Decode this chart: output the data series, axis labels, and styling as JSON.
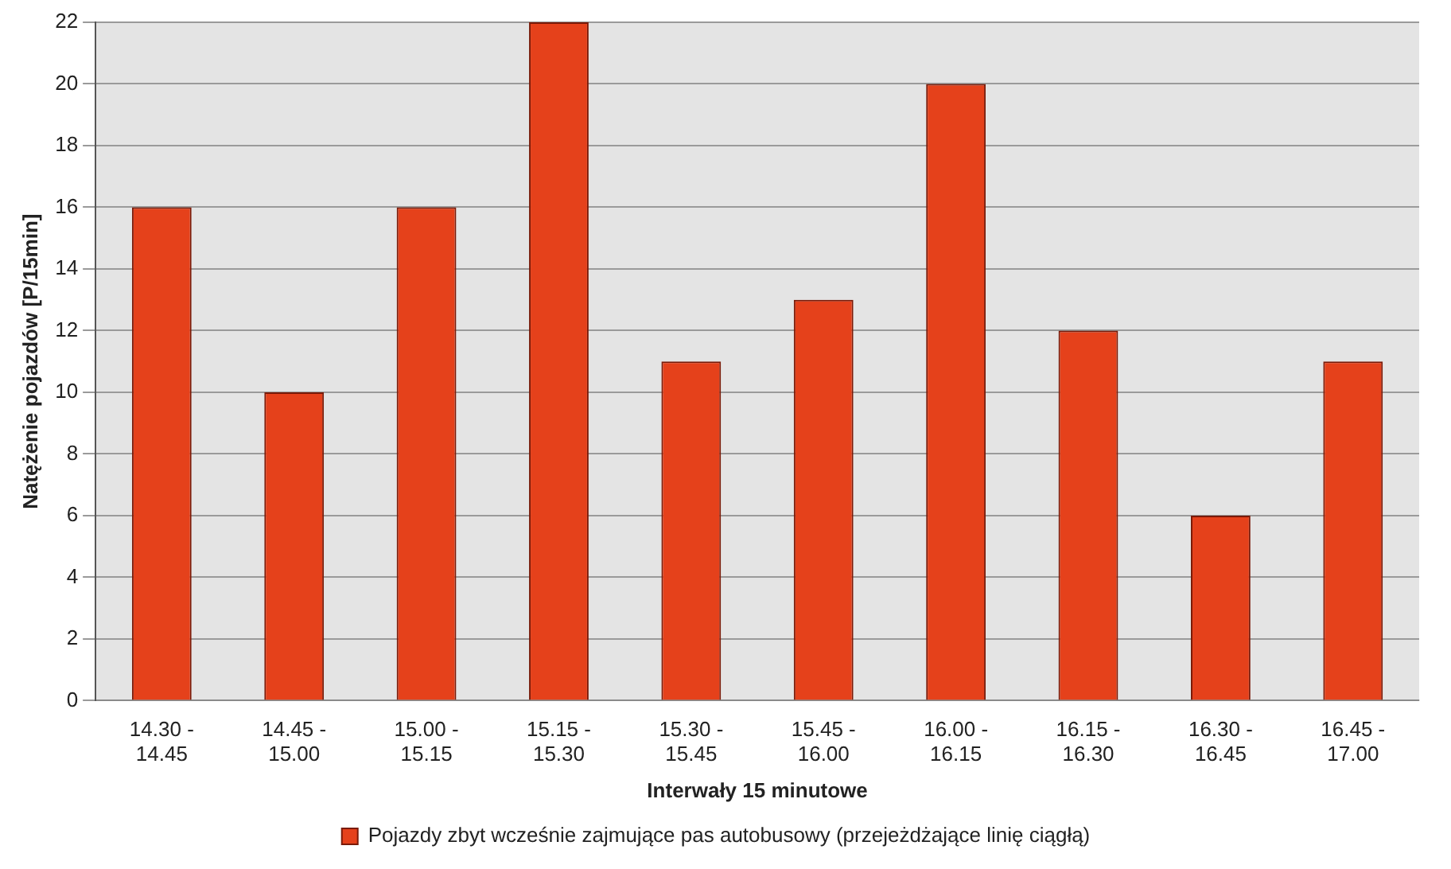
{
  "chart_data": {
    "type": "bar",
    "xlabel": "Interwały 15 minutowe",
    "ylabel": "Natężenie pojazdów [P/15min]",
    "categories": [
      "14.30 -\n14.45",
      "14.45 -\n15.00",
      "15.00 -\n15.15",
      "15.15 -\n15.30",
      "15.30 -\n15.45",
      "15.45 -\n16.00",
      "16.00 -\n16.15",
      "16.15 -\n16.30",
      "16.30 -\n16.45",
      "16.45 -\n17.00"
    ],
    "series": [
      {
        "name": "Pojazdy zbyt wcześnie zajmujące pas autobusowy (przejeżdżające linię ciągłą)",
        "color": "#e5411b",
        "values": [
          16,
          10,
          16,
          22,
          11,
          13,
          20,
          12,
          6,
          11
        ]
      }
    ],
    "ylim": [
      0,
      22
    ],
    "yticks": [
      0,
      2,
      4,
      6,
      8,
      10,
      12,
      14,
      16,
      18,
      20,
      22
    ],
    "grid": "y",
    "legend": "bottom"
  }
}
